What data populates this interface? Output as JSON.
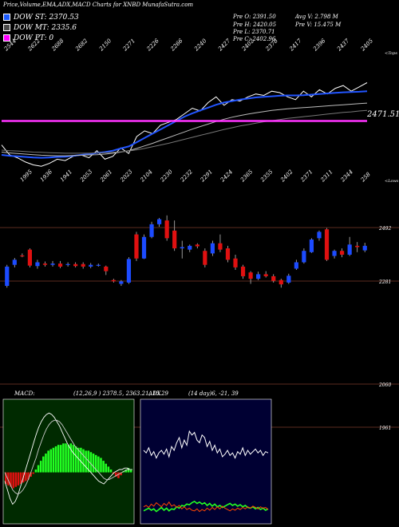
{
  "header": {
    "title": "Price,Volume,EMA,ADX,MACD Charts for XNBD MunafaSutra.com"
  },
  "legend": [
    {
      "label": "DOW ST: 2370.53",
      "color": "#1c5bff"
    },
    {
      "label": "DOW MT: 2335.6",
      "color": "#4a4a4a"
    },
    {
      "label": "DOW PT: 0",
      "color": "#ff00ff"
    }
  ],
  "stats": {
    "pre_o": "Pre O: 2391.50",
    "pre_h": "Pre H: 2420.05",
    "pre_l": "Pre L: 2370.71",
    "pre_c": "Pre C: 2402.96",
    "avg_v": "Avg V: 2.798 M",
    "pre_v": "Pre V: 15.475 M"
  },
  "colors": {
    "up": "#1c4bff",
    "down": "#e01010",
    "pink": "#ff33ff",
    "macd_hist_pos": "#22ff22"
  },
  "chart_data": [
    {
      "type": "line",
      "name": "ema-panel",
      "tick_labels_top": [
        "2544",
        "2622",
        "2688",
        "2682",
        "2150",
        "2271",
        "2226",
        "2266",
        "2240",
        "2427",
        "2402",
        "2378",
        "2417",
        "2396",
        "2437",
        "2405"
      ],
      "corner_label": "<Tops",
      "price_label": "2471.51",
      "series": [
        {
          "color": "#ffffff",
          "values": [
            2250,
            2215,
            2205,
            2190,
            2180,
            2175,
            2185,
            2200,
            2195,
            2210,
            2215,
            2205,
            2230,
            2200,
            2210,
            2240,
            2220,
            2280,
            2300,
            2290,
            2320,
            2330,
            2340,
            2360,
            2380,
            2370,
            2400,
            2420,
            2390,
            2410,
            2405,
            2420,
            2430,
            2425,
            2440,
            2435,
            2420,
            2410,
            2440,
            2420,
            2445,
            2430,
            2450,
            2460,
            2440,
            2455,
            2470
          ]
        },
        {
          "color": "#2255ff",
          "values": [
            2215,
            2212,
            2210,
            2208,
            2206,
            2205,
            2206,
            2208,
            2209,
            2212,
            2215,
            2218,
            2222,
            2225,
            2230,
            2238,
            2245,
            2260,
            2275,
            2290,
            2305,
            2320,
            2335,
            2350,
            2362,
            2372,
            2382,
            2392,
            2400,
            2405,
            2410,
            2414,
            2418,
            2420,
            2422,
            2424,
            2425,
            2425,
            2426,
            2428,
            2430,
            2432,
            2434,
            2436,
            2437,
            2438,
            2440
          ]
        },
        {
          "color": "#bbbbbb",
          "values": [
            2225,
            2222,
            2220,
            2218,
            2216,
            2214,
            2213,
            2212,
            2212,
            2213,
            2214,
            2215,
            2216,
            2218,
            2221,
            2225,
            2230,
            2238,
            2247,
            2256,
            2266,
            2276,
            2286,
            2296,
            2306,
            2315,
            2324,
            2333,
            2341,
            2348,
            2354,
            2359,
            2364,
            2368,
            2372,
            2375,
            2378,
            2380,
            2382,
            2384,
            2386,
            2388,
            2390,
            2392,
            2394,
            2396,
            2398
          ]
        },
        {
          "color": "#777777",
          "values": [
            2232,
            2230,
            2229,
            2227,
            2225,
            2224,
            2223,
            2222,
            2221,
            2221,
            2221,
            2221,
            2222,
            2223,
            2224,
            2226,
            2229,
            2233,
            2238,
            2244,
            2250,
            2256,
            2263,
            2270,
            2277,
            2284,
            2291,
            2298,
            2305,
            2311,
            2317,
            2322,
            2327,
            2332,
            2336,
            2340,
            2344,
            2347,
            2350,
            2353,
            2356,
            2359,
            2362,
            2365,
            2367,
            2370,
            2372
          ]
        },
        {
          "color": "#ff33ff",
          "values": [
            2335,
            2335,
            2335,
            2335,
            2335,
            2335,
            2335,
            2335,
            2335,
            2335,
            2335,
            2335,
            2335,
            2335,
            2335,
            2335,
            2335,
            2335,
            2335,
            2335,
            2335,
            2335,
            2335,
            2335,
            2335,
            2335,
            2335,
            2335,
            2335,
            2335,
            2335,
            2335,
            2335,
            2335,
            2335,
            2335,
            2335,
            2335,
            2335,
            2335,
            2335,
            2335,
            2335,
            2335,
            2335,
            2335,
            2335
          ]
        }
      ]
    },
    {
      "type": "candlestick",
      "name": "price-panel",
      "tick_labels_top": [
        "1995",
        "1936",
        "1941",
        "2053",
        "2061",
        "2023",
        "2104",
        "2230",
        "2232",
        "2291",
        "2424",
        "2365",
        "2355",
        "2402",
        "2371",
        "2311",
        "2344",
        "258"
      ],
      "corner_label": "<Lows",
      "price_levels": [
        "2492",
        "2281",
        "2060",
        "1961"
      ],
      "candles": [
        {
          "o": 2262,
          "c": 2338,
          "h": 2345,
          "l": 2255
        },
        {
          "o": 2345,
          "c": 2365,
          "h": 2372,
          "l": 2335
        },
        {
          "o": 2382,
          "c": 2380,
          "h": 2390,
          "l": 2375
        },
        {
          "o": 2405,
          "c": 2342,
          "h": 2410,
          "l": 2335
        },
        {
          "o": 2340,
          "c": 2355,
          "h": 2365,
          "l": 2330
        },
        {
          "o": 2350,
          "c": 2345,
          "h": 2358,
          "l": 2338
        },
        {
          "o": 2345,
          "c": 2350,
          "h": 2360,
          "l": 2338
        },
        {
          "o": 2350,
          "c": 2338,
          "h": 2360,
          "l": 2332
        },
        {
          "o": 2345,
          "c": 2348,
          "h": 2355,
          "l": 2338
        },
        {
          "o": 2348,
          "c": 2340,
          "h": 2355,
          "l": 2335
        },
        {
          "o": 2348,
          "c": 2338,
          "h": 2355,
          "l": 2330
        },
        {
          "o": 2338,
          "c": 2345,
          "h": 2352,
          "l": 2332
        },
        {
          "o": 2345,
          "c": 2345,
          "h": 2350,
          "l": 2338
        },
        {
          "o": 2338,
          "c": 2320,
          "h": 2342,
          "l": 2305
        },
        {
          "o": 2285,
          "c": 2280,
          "h": 2290,
          "l": 2275
        },
        {
          "o": 2270,
          "c": 2280,
          "h": 2285,
          "l": 2262
        },
        {
          "o": 2275,
          "c": 2368,
          "h": 2375,
          "l": 2270
        },
        {
          "o": 2465,
          "c": 2370,
          "h": 2475,
          "l": 2360
        },
        {
          "o": 2370,
          "c": 2455,
          "h": 2465,
          "l": 2368
        },
        {
          "o": 2455,
          "c": 2505,
          "h": 2515,
          "l": 2450
        },
        {
          "o": 2505,
          "c": 2525,
          "h": 2530,
          "l": 2495
        },
        {
          "o": 2520,
          "c": 2450,
          "h": 2540,
          "l": 2440
        },
        {
          "o": 2480,
          "c": 2410,
          "h": 2520,
          "l": 2400
        },
        {
          "o": 2410,
          "c": 2415,
          "h": 2440,
          "l": 2370
        },
        {
          "o": 2405,
          "c": 2420,
          "h": 2425,
          "l": 2395
        },
        {
          "o": 2425,
          "c": 2418,
          "h": 2430,
          "l": 2410
        },
        {
          "o": 2400,
          "c": 2345,
          "h": 2410,
          "l": 2335
        },
        {
          "o": 2390,
          "c": 2430,
          "h": 2440,
          "l": 2380
        },
        {
          "o": 2430,
          "c": 2405,
          "h": 2465,
          "l": 2395
        },
        {
          "o": 2410,
          "c": 2365,
          "h": 2420,
          "l": 2355
        },
        {
          "o": 2370,
          "c": 2335,
          "h": 2385,
          "l": 2325
        },
        {
          "o": 2338,
          "c": 2300,
          "h": 2345,
          "l": 2290
        },
        {
          "o": 2315,
          "c": 2290,
          "h": 2320,
          "l": 2270
        },
        {
          "o": 2290,
          "c": 2308,
          "h": 2318,
          "l": 2285
        },
        {
          "o": 2308,
          "c": 2300,
          "h": 2320,
          "l": 2295
        },
        {
          "o": 2300,
          "c": 2282,
          "h": 2308,
          "l": 2275
        },
        {
          "o": 2285,
          "c": 2268,
          "h": 2290,
          "l": 2255
        },
        {
          "o": 2275,
          "c": 2302,
          "h": 2310,
          "l": 2270
        },
        {
          "o": 2330,
          "c": 2355,
          "h": 2365,
          "l": 2325
        },
        {
          "o": 2355,
          "c": 2400,
          "h": 2410,
          "l": 2350
        },
        {
          "o": 2395,
          "c": 2445,
          "h": 2450,
          "l": 2392
        },
        {
          "o": 2450,
          "c": 2475,
          "h": 2480,
          "l": 2440
        },
        {
          "o": 2485,
          "c": 2365,
          "h": 2490,
          "l": 2360
        },
        {
          "o": 2380,
          "c": 2400,
          "h": 2405,
          "l": 2370
        },
        {
          "o": 2400,
          "c": 2385,
          "h": 2410,
          "l": 2375
        },
        {
          "o": 2385,
          "c": 2425,
          "h": 2455,
          "l": 2380
        },
        {
          "o": 2420,
          "c": 2415,
          "h": 2435,
          "l": 2395
        },
        {
          "o": 2402,
          "c": 2420,
          "h": 2432,
          "l": 2395
        }
      ],
      "ylim": [
        1940,
        2560
      ]
    },
    {
      "type": "bar",
      "name": "macd-panel",
      "label": "MACD:",
      "params": "(12,26,9 ) 2378.5, 2363.21, 15.29",
      "histogram": [
        -8,
        -9,
        -10,
        -11,
        -10,
        -9,
        -8,
        -7,
        -6,
        -5,
        -3,
        -1,
        2,
        5,
        8,
        11,
        13,
        15,
        16,
        17,
        18,
        19,
        19,
        20,
        20,
        19,
        20,
        19,
        18,
        17,
        17,
        16,
        15,
        15,
        14,
        13,
        12,
        11,
        10,
        8,
        6,
        4,
        2,
        -1,
        -3,
        -4,
        -2,
        1,
        2,
        3,
        2
      ],
      "ylim": [
        -30,
        45
      ]
    },
    {
      "type": "line",
      "name": "adx-panel",
      "label": "ADX",
      "params": "(14 day)6, -21, 39",
      "series": [
        {
          "color": "#ffffff",
          "values": [
            30,
            28,
            32,
            26,
            29,
            24,
            28,
            30,
            27,
            31,
            25,
            33,
            30,
            36,
            40,
            32,
            38,
            34,
            45,
            42,
            44,
            38,
            36,
            42,
            40,
            33,
            37,
            30,
            34,
            28,
            31,
            25,
            27,
            30,
            26,
            28,
            24,
            29,
            27,
            32,
            26,
            30,
            27,
            29,
            31,
            28,
            30,
            26,
            29,
            28
          ]
        },
        {
          "color": "#22ff22",
          "values": [
            12,
            14,
            16,
            13,
            15,
            11,
            14,
            17,
            13,
            16,
            12,
            15,
            14,
            18,
            16,
            20,
            19,
            22,
            21,
            24,
            26,
            23,
            25,
            22,
            24,
            20,
            23,
            19,
            22,
            18,
            20,
            17,
            19,
            21,
            23,
            20,
            22,
            19,
            21,
            18,
            20,
            17,
            16,
            18,
            15,
            17,
            14,
            16,
            13,
            15
          ]
        },
        {
          "color": "#ff4400",
          "values": [
            18,
            20,
            17,
            22,
            19,
            24,
            21,
            18,
            23,
            20,
            25,
            19,
            21,
            17,
            20,
            15,
            18,
            14,
            16,
            13,
            12,
            15,
            11,
            14,
            12,
            16,
            13,
            17,
            14,
            18,
            15,
            19,
            16,
            14,
            12,
            15,
            13,
            16,
            14,
            17,
            15,
            18,
            16,
            19,
            17,
            15,
            18,
            16,
            17,
            14
          ]
        }
      ]
    }
  ]
}
